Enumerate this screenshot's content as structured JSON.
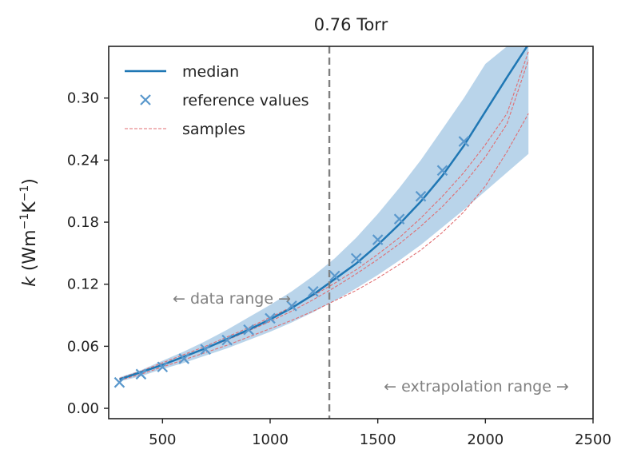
{
  "chart_data": {
    "type": "line",
    "title": "0.76 Torr",
    "ylabel_k": "k",
    "ylabel_rest": " (Wm",
    "ylabel_sup1": "−1",
    "ylabel_mid": "K",
    "ylabel_sup2": "−1",
    "ylabel_close": ")",
    "xlim": [
      250,
      2500
    ],
    "ylim": [
      -0.01,
      0.35
    ],
    "xticks": [
      500,
      1000,
      1500,
      2000,
      2500
    ],
    "yticks": [
      0.0,
      0.06,
      0.12,
      0.18,
      0.24,
      0.3
    ],
    "ytick_labels": [
      "0.00",
      "0.06",
      "0.12",
      "0.18",
      "0.24",
      "0.30"
    ],
    "legend": {
      "position": "top-left",
      "entries": [
        "median",
        "reference values",
        "samples"
      ]
    },
    "colors": {
      "median": "#1f77b4",
      "band": "#b9d4ea",
      "reference": "#5a98cc",
      "samples": "#e06e72",
      "vline": "#808080",
      "annotation": "#808080"
    },
    "vline_x": 1275,
    "annotations": {
      "data_range": "← data range →",
      "extrapolation_range": "← extrapolation range →"
    },
    "series": [
      {
        "name": "median",
        "x": [
          300,
          400,
          500,
          600,
          700,
          800,
          900,
          1000,
          1100,
          1200,
          1300,
          1400,
          1500,
          1600,
          1700,
          1800,
          1900,
          2000,
          2100,
          2200
        ],
        "y": [
          0.028,
          0.035,
          0.042,
          0.05,
          0.058,
          0.067,
          0.076,
          0.086,
          0.097,
          0.11,
          0.125,
          0.14,
          0.158,
          0.178,
          0.2,
          0.225,
          0.254,
          0.287,
          0.32,
          0.352
        ]
      },
      {
        "name": "band_upper",
        "x": [
          300,
          400,
          500,
          600,
          700,
          800,
          900,
          1000,
          1100,
          1200,
          1300,
          1400,
          1500,
          1600,
          1700,
          1800,
          1900,
          2000,
          2100,
          2200
        ],
        "y": [
          0.03,
          0.037,
          0.046,
          0.055,
          0.065,
          0.076,
          0.088,
          0.1,
          0.113,
          0.128,
          0.145,
          0.165,
          0.188,
          0.213,
          0.24,
          0.27,
          0.3,
          0.333,
          0.35,
          0.35
        ]
      },
      {
        "name": "band_lower",
        "x": [
          300,
          400,
          500,
          600,
          700,
          800,
          900,
          1000,
          1100,
          1200,
          1300,
          1400,
          1500,
          1600,
          1700,
          1800,
          1900,
          2000,
          2100,
          2200
        ],
        "y": [
          0.026,
          0.031,
          0.038,
          0.044,
          0.051,
          0.058,
          0.066,
          0.074,
          0.083,
          0.093,
          0.104,
          0.116,
          0.129,
          0.143,
          0.158,
          0.175,
          0.192,
          0.21,
          0.228,
          0.246
        ]
      },
      {
        "name": "reference values",
        "x": [
          300,
          400,
          500,
          600,
          700,
          800,
          900,
          1000,
          1100,
          1200,
          1300,
          1400,
          1500,
          1600,
          1700,
          1800,
          1900
        ],
        "y": [
          0.025,
          0.033,
          0.04,
          0.048,
          0.057,
          0.066,
          0.076,
          0.087,
          0.099,
          0.113,
          0.128,
          0.145,
          0.163,
          0.183,
          0.205,
          0.23,
          0.258
        ]
      },
      {
        "name": "sample 1",
        "x": [
          300,
          400,
          500,
          600,
          700,
          800,
          900,
          1000,
          1100,
          1200,
          1300,
          1400,
          1500,
          1600,
          1700,
          1800,
          1900,
          2000,
          2100,
          2200
        ],
        "y": [
          0.029,
          0.036,
          0.044,
          0.052,
          0.06,
          0.069,
          0.078,
          0.088,
          0.098,
          0.109,
          0.121,
          0.134,
          0.149,
          0.165,
          0.184,
          0.205,
          0.228,
          0.255,
          0.285,
          0.345
        ]
      },
      {
        "name": "sample 2",
        "x": [
          300,
          400,
          500,
          600,
          700,
          800,
          900,
          1000,
          1100,
          1200,
          1300,
          1400,
          1500,
          1600,
          1700,
          1800,
          1900,
          2000,
          2100,
          2200
        ],
        "y": [
          0.028,
          0.035,
          0.042,
          0.05,
          0.058,
          0.066,
          0.075,
          0.084,
          0.094,
          0.105,
          0.117,
          0.13,
          0.144,
          0.159,
          0.176,
          0.195,
          0.217,
          0.243,
          0.275,
          0.337
        ]
      },
      {
        "name": "sample 3",
        "x": [
          300,
          400,
          500,
          600,
          700,
          800,
          900,
          1000,
          1100,
          1200,
          1300,
          1400,
          1500,
          1600,
          1700,
          1800,
          1900,
          2000,
          2100,
          2200
        ],
        "y": [
          0.027,
          0.033,
          0.04,
          0.047,
          0.054,
          0.061,
          0.069,
          0.077,
          0.085,
          0.094,
          0.104,
          0.114,
          0.126,
          0.139,
          0.153,
          0.17,
          0.19,
          0.215,
          0.248,
          0.285
        ]
      }
    ]
  }
}
